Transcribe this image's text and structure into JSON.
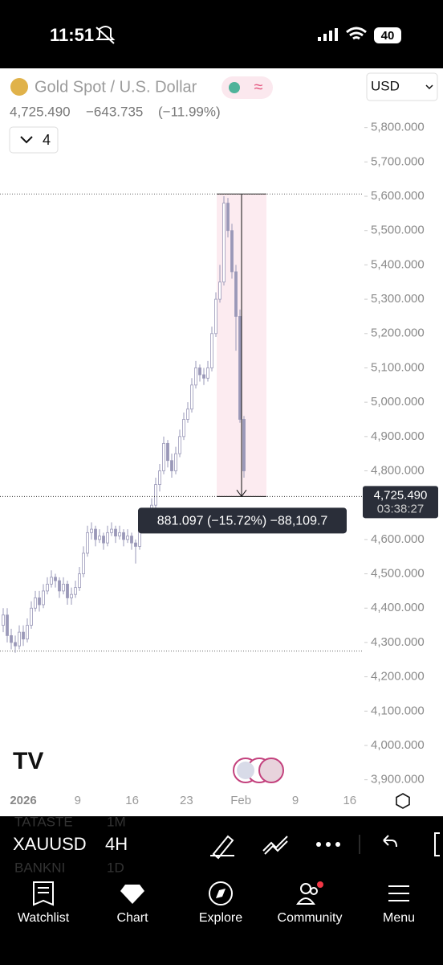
{
  "status_bar": {
    "time": "11:51",
    "battery": "40"
  },
  "header": {
    "symbol_name": "Gold Spot / U.S. Dollar",
    "currency": "USD",
    "price": "4,725.490",
    "change": "−643.735",
    "change_pct": "(−11.99%)",
    "indicator_count": "4"
  },
  "chart_data": {
    "type": "candlestick",
    "ylim": [
      3850,
      5900
    ],
    "yticks": [
      {
        "value": 5800,
        "label": "5,800.000"
      },
      {
        "value": 5700,
        "label": "5,700.000"
      },
      {
        "value": 5600,
        "label": "5,600.000"
      },
      {
        "value": 5500,
        "label": "5,500.000"
      },
      {
        "value": 5400,
        "label": "5,400.000"
      },
      {
        "value": 5300,
        "label": "5,300.000"
      },
      {
        "value": 5200,
        "label": "5,200.000"
      },
      {
        "value": 5100,
        "label": "5,100.000"
      },
      {
        "value": 5000,
        "label": "5,000.000"
      },
      {
        "value": 4900,
        "label": "4,900.000"
      },
      {
        "value": 4800,
        "label": "4,800.000"
      },
      {
        "value": 4700,
        "label": "4,700.000"
      },
      {
        "value": 4600,
        "label": "4,600.000"
      },
      {
        "value": 4500,
        "label": "4,500.000"
      },
      {
        "value": 4400,
        "label": "4,400.000"
      },
      {
        "value": 4300,
        "label": "4,300.000"
      },
      {
        "value": 4200,
        "label": "4,200.000"
      },
      {
        "value": 4100,
        "label": "4,100.000"
      },
      {
        "value": 4000,
        "label": "4,000.000"
      },
      {
        "value": 3900,
        "label": "3,900.000"
      }
    ],
    "x_labels": [
      "2026",
      "9",
      "16",
      "23",
      "Feb",
      "9",
      "16"
    ],
    "color": "#9a98b8",
    "ohlc": [
      [
        4350,
        4400,
        4330,
        4380
      ],
      [
        4380,
        4400,
        4300,
        4320
      ],
      [
        4320,
        4340,
        4280,
        4300
      ],
      [
        4300,
        4320,
        4270,
        4290
      ],
      [
        4290,
        4350,
        4280,
        4330
      ],
      [
        4330,
        4350,
        4290,
        4310
      ],
      [
        4310,
        4370,
        4300,
        4350
      ],
      [
        4350,
        4420,
        4340,
        4400
      ],
      [
        4400,
        4450,
        4390,
        4430
      ],
      [
        4430,
        4450,
        4390,
        4410
      ],
      [
        4410,
        4470,
        4400,
        4450
      ],
      [
        4450,
        4490,
        4440,
        4470
      ],
      [
        4470,
        4510,
        4460,
        4490
      ],
      [
        4490,
        4500,
        4460,
        4480
      ],
      [
        4480,
        4490,
        4430,
        4450
      ],
      [
        4450,
        4490,
        4440,
        4470
      ],
      [
        4470,
        4480,
        4410,
        4430
      ],
      [
        4430,
        4460,
        4410,
        4440
      ],
      [
        4440,
        4480,
        4430,
        4460
      ],
      [
        4460,
        4520,
        4450,
        4500
      ],
      [
        4500,
        4580,
        4490,
        4560
      ],
      [
        4560,
        4640,
        4550,
        4620
      ],
      [
        4620,
        4650,
        4600,
        4630
      ],
      [
        4630,
        4640,
        4580,
        4600
      ],
      [
        4600,
        4630,
        4590,
        4610
      ],
      [
        4610,
        4620,
        4570,
        4590
      ],
      [
        4590,
        4640,
        4580,
        4620
      ],
      [
        4620,
        4650,
        4610,
        4630
      ],
      [
        4630,
        4640,
        4590,
        4610
      ],
      [
        4610,
        4640,
        4600,
        4620
      ],
      [
        4620,
        4630,
        4580,
        4600
      ],
      [
        4600,
        4630,
        4590,
        4610
      ],
      [
        4610,
        4620,
        4570,
        4590
      ],
      [
        4590,
        4600,
        4530,
        4580
      ],
      [
        4580,
        4660,
        4570,
        4640
      ],
      [
        4640,
        4680,
        4630,
        4660
      ],
      [
        4660,
        4690,
        4640,
        4670
      ],
      [
        4670,
        4720,
        4660,
        4700
      ],
      [
        4700,
        4780,
        4690,
        4760
      ],
      [
        4760,
        4820,
        4740,
        4800
      ],
      [
        4800,
        4900,
        4790,
        4880
      ],
      [
        4880,
        4890,
        4810,
        4830
      ],
      [
        4830,
        4850,
        4780,
        4800
      ],
      [
        4800,
        4870,
        4790,
        4850
      ],
      [
        4850,
        4920,
        4840,
        4900
      ],
      [
        4900,
        4970,
        4890,
        4950
      ],
      [
        4950,
        5000,
        4940,
        4980
      ],
      [
        4980,
        5070,
        4970,
        5050
      ],
      [
        5050,
        5120,
        5040,
        5100
      ],
      [
        5100,
        5110,
        5060,
        5080
      ],
      [
        5080,
        5100,
        5050,
        5070
      ],
      [
        5070,
        5120,
        5060,
        5100
      ],
      [
        5100,
        5220,
        5090,
        5200
      ],
      [
        5200,
        5320,
        5190,
        5300
      ],
      [
        5300,
        5400,
        5290,
        5350
      ],
      [
        5350,
        5600,
        5340,
        5580
      ],
      [
        5580,
        5595,
        5480,
        5500
      ],
      [
        5500,
        5520,
        5360,
        5380
      ],
      [
        5380,
        5400,
        5150,
        5250
      ],
      [
        5250,
        5270,
        4940,
        4950
      ],
      [
        4950,
        4960,
        4780,
        4800
      ]
    ],
    "last_price": {
      "value": 4725.49,
      "label": "4,725.490"
    },
    "countdown": "03:38:27",
    "hlines": [
      4275
    ],
    "measure": {
      "from": 5606.587,
      "to": 4725.49,
      "label": "881.097 (−15.72%) −88,109.7"
    }
  },
  "toolbar": {
    "symbol": "XAUUSD",
    "interval": "4H",
    "faded": [
      "TATASTE",
      "1M",
      "BANKNI",
      "1D"
    ]
  },
  "tabs": [
    "Watchlist",
    "Chart",
    "Explore",
    "Community",
    "Menu"
  ]
}
